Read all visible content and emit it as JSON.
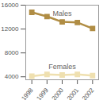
{
  "chart_data": {
    "type": "line",
    "x": [
      1998,
      1999,
      2000,
      2001,
      2002
    ],
    "series": [
      {
        "name": "Males",
        "color": "#b08d44",
        "values": [
          14800,
          14100,
          13200,
          13100,
          12100
        ],
        "marker": "square"
      },
      {
        "name": "Females",
        "color": "#efe0b0",
        "values": [
          4100,
          4400,
          4300,
          4400,
          4200
        ],
        "marker": "square"
      }
    ],
    "xlim": [
      1997.6,
      2002.4
    ],
    "xticks": [
      1998,
      1999,
      2000,
      2001,
      2002
    ],
    "ylim": [
      3500,
      16000
    ],
    "yticks": [
      4000,
      8000,
      12000,
      16000
    ],
    "grid": false
  }
}
